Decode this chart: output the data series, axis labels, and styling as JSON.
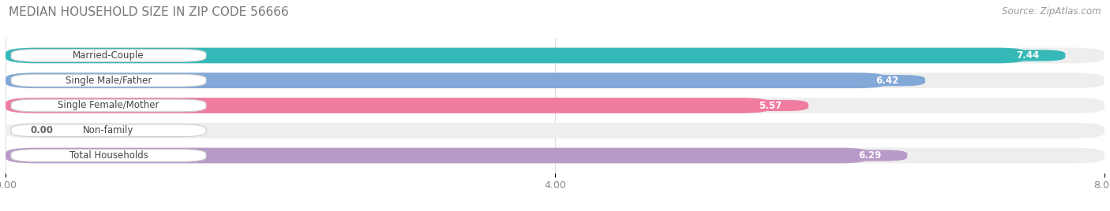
{
  "title": "MEDIAN HOUSEHOLD SIZE IN ZIP CODE 56666",
  "source": "Source: ZipAtlas.com",
  "categories": [
    "Married-Couple",
    "Single Male/Father",
    "Single Female/Mother",
    "Non-family",
    "Total Households"
  ],
  "values": [
    7.44,
    6.42,
    5.57,
    0.0,
    6.29
  ],
  "bar_colors": [
    "#35b8b8",
    "#82a8d8",
    "#f07ca0",
    "#f5c990",
    "#b89ac8"
  ],
  "xlim": [
    0,
    8.0
  ],
  "xticks": [
    0.0,
    4.0,
    8.0
  ],
  "xticklabels": [
    "0.00",
    "4.00",
    "8.00"
  ],
  "background_color": "#ffffff",
  "bar_background_color": "#eeeeee",
  "title_fontsize": 11,
  "source_fontsize": 8.5,
  "label_fontsize": 8.5,
  "value_fontsize": 8.5,
  "bar_height": 0.62,
  "figsize": [
    14.06,
    2.68
  ]
}
